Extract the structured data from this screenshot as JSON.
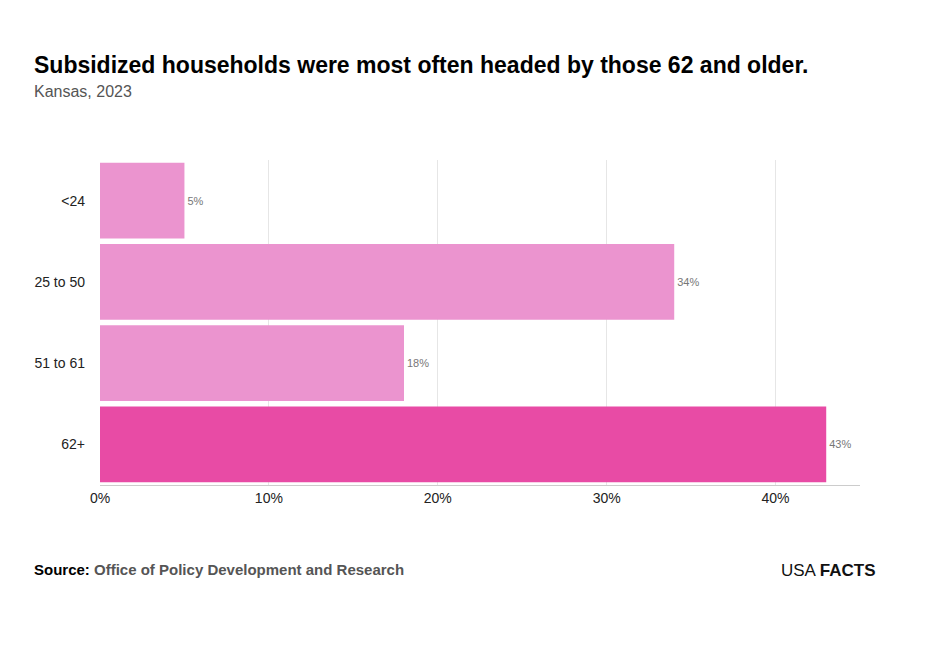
{
  "chart_data": {
    "type": "bar",
    "orientation": "horizontal",
    "title": "Subsidized households were most often headed by those 62 and older.",
    "subtitle": "Kansas, 2023",
    "categories": [
      "<24",
      "25 to 50",
      "51 to 61",
      "62+"
    ],
    "values": [
      5,
      34,
      18,
      43
    ],
    "value_labels": [
      "5%",
      "34%",
      "18%",
      "43%"
    ],
    "data_labels": true,
    "colors": [
      "#eb94cf",
      "#eb94cf",
      "#eb94cf",
      "#e84ba5"
    ],
    "xlim": [
      0,
      45
    ],
    "xticks": [
      {
        "value": 0,
        "label": "0%"
      },
      {
        "value": 10,
        "label": "10%"
      },
      {
        "value": 20,
        "label": "20%"
      },
      {
        "value": 30,
        "label": "30%"
      },
      {
        "value": 40,
        "label": "40%"
      }
    ],
    "grid": true,
    "source_label": "Source:",
    "source": "Office of Policy Development and Research",
    "logo_parts": [
      "USA",
      "FACTS"
    ]
  }
}
